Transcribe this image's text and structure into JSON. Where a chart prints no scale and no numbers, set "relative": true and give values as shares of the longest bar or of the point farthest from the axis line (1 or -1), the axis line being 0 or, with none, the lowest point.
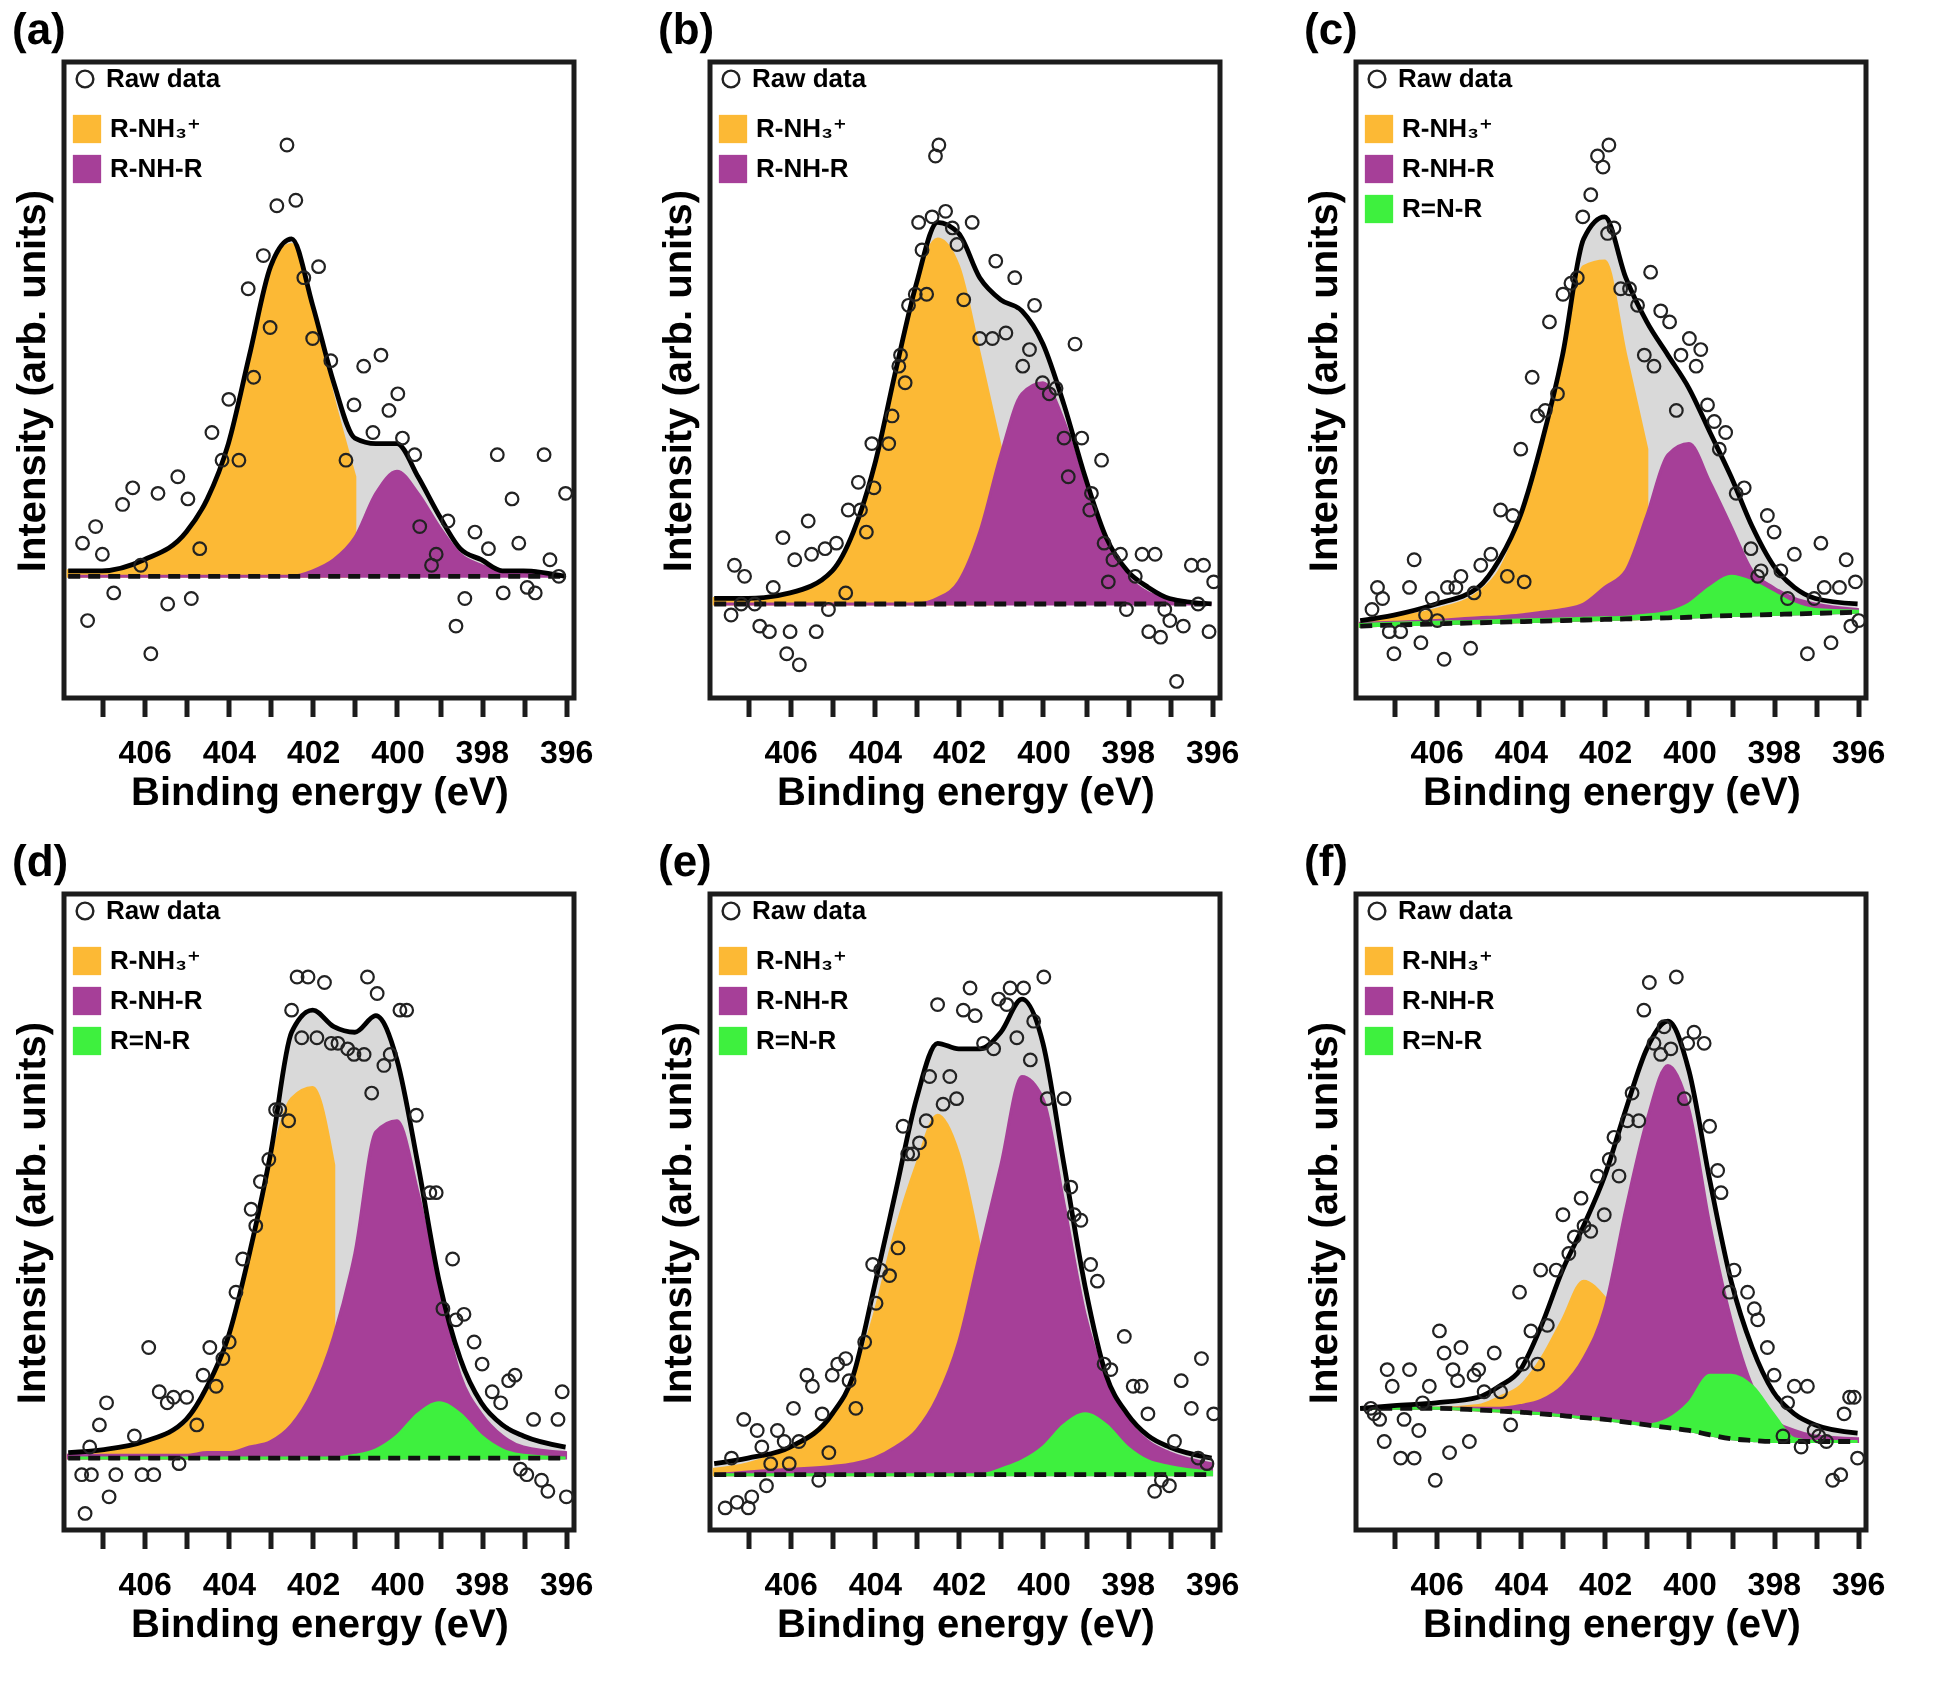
{
  "chart_data": [
    {
      "type": "area",
      "title": "(a)",
      "xlabel": "Binding energy (eV)",
      "ylabel": "Intensity (arb. units)",
      "relative": true,
      "legend": "top left",
      "xlim": [
        407.9,
        395.8
      ],
      "xticks": [
        {
          "value": 407,
          "label": null
        },
        406,
        {
          "value": 405,
          "label": null
        },
        404,
        {
          "value": 403,
          "label": null
        },
        402,
        {
          "value": 401,
          "label": null
        },
        400,
        {
          "value": 399,
          "label": null
        },
        398,
        {
          "value": 397,
          "label": null
        },
        396
      ],
      "x": [
        407.8,
        407,
        406,
        405,
        404.5,
        404,
        403.5,
        403,
        402.5,
        402,
        401.5,
        401,
        400.5,
        400,
        399.5,
        399,
        398.5,
        398,
        397.5,
        397,
        396
      ],
      "series": [
        {
          "color": "#d9d9d9",
          "values": [
            0.23,
            0.23,
            0.25,
            0.3,
            0.36,
            0.46,
            0.62,
            0.78,
            0.83,
            0.71,
            0.57,
            0.47,
            0.46,
            0.46,
            0.4,
            0.33,
            0.27,
            0.25,
            0.23,
            0.23,
            0.22
          ]
        },
        {
          "name": "R-NH₃⁺",
          "color": "#fcb935",
          "values": [
            0.23,
            0.23,
            0.25,
            0.3,
            0.36,
            0.46,
            0.62,
            0.78,
            0.82,
            0.7,
            0.54,
            0.4,
            null,
            null,
            null,
            null,
            null,
            null,
            null,
            null,
            null
          ]
        },
        {
          "name": "R-NH-R",
          "color": "#a63f98",
          "values": [
            0.22,
            0.22,
            0.22,
            0.22,
            0.22,
            0.22,
            0.22,
            0.22,
            0.22,
            0.23,
            0.25,
            0.29,
            0.37,
            0.41,
            0.37,
            0.31,
            0.26,
            0.24,
            0.23,
            0.23,
            0.22
          ]
        },
        {
          "type": "line",
          "color": "#111111",
          "line_style": "dashed",
          "values": [
            0.22,
            0.22,
            0.22,
            0.22,
            0.22,
            0.22,
            0.22,
            0.22,
            0.22,
            0.22,
            0.22,
            0.22,
            0.22,
            0.22,
            0.22,
            0.22,
            0.22,
            0.22,
            0.22,
            0.22,
            0.22
          ]
        },
        {
          "name": "Raw data",
          "type": "scatter",
          "color": "#222222",
          "marker": "circle",
          "x": [
            407.46,
            407.34,
            407.15,
            406.99,
            406.72,
            406.51,
            406.27,
            406.08,
            405.84,
            405.67,
            405.44,
            405.2,
            404.96,
            404.88,
            404.68,
            404.39,
            404.15,
            403.99,
            403.75,
            403.53,
            403.4,
            403.17,
            403.01,
            402.85,
            402.61,
            402.4,
            402.21,
            402.0,
            401.86,
            401.57,
            401.21,
            401.02,
            400.79,
            400.57,
            400.38,
            400.19,
            399.98,
            399.87,
            399.58,
            399.46,
            399.18,
            399.07,
            398.79,
            398.6,
            398.39,
            398.15,
            397.83,
            397.62,
            397.48,
            397.27,
            397.11,
            396.91,
            396.72,
            396.51,
            396.37,
            396.16,
            396.0
          ],
          "values": [
            0.28,
            0.14,
            0.31,
            0.26,
            0.19,
            0.35,
            0.38,
            0.24,
            0.08,
            0.37,
            0.17,
            0.4,
            0.36,
            0.18,
            0.27,
            0.48,
            0.43,
            0.54,
            0.43,
            0.74,
            0.58,
            0.8,
            0.67,
            0.89,
            1.0,
            0.9,
            0.76,
            0.65,
            0.78,
            0.61,
            0.43,
            0.53,
            0.6,
            0.48,
            0.62,
            0.52,
            0.55,
            0.47,
            0.44,
            0.31,
            0.24,
            0.26,
            0.32,
            0.13,
            0.18,
            0.3,
            0.27,
            0.44,
            0.19,
            0.36,
            0.28,
            0.2,
            0.19,
            0.44,
            0.25,
            0.22,
            0.37
          ]
        }
      ]
    },
    {
      "type": "area",
      "title": "(b)",
      "xlabel": "Binding energy (eV)",
      "ylabel": "Intensity (arb. units)",
      "relative": true,
      "legend": "top left",
      "xlim": [
        407.9,
        395.8
      ],
      "xticks": [
        {
          "value": 407,
          "label": null
        },
        406,
        {
          "value": 405,
          "label": null
        },
        404,
        {
          "value": 403,
          "label": null
        },
        402,
        {
          "value": 401,
          "label": null
        },
        400,
        {
          "value": 399,
          "label": null
        },
        398,
        {
          "value": 397,
          "label": null
        },
        396
      ],
      "x": [
        407.8,
        407,
        406,
        405,
        404.5,
        404,
        403.5,
        403,
        402.5,
        402,
        401.5,
        401,
        400.5,
        400,
        399.5,
        399,
        398.5,
        398,
        397.5,
        397,
        396
      ],
      "series": [
        {
          "color": "#d9d9d9",
          "values": [
            0.18,
            0.18,
            0.19,
            0.23,
            0.3,
            0.42,
            0.59,
            0.75,
            0.86,
            0.84,
            0.76,
            0.72,
            0.7,
            0.64,
            0.53,
            0.4,
            0.29,
            0.23,
            0.2,
            0.18,
            0.17
          ]
        },
        {
          "name": "R-NH₃⁺",
          "color": "#fcb935",
          "values": [
            0.18,
            0.18,
            0.19,
            0.23,
            0.3,
            0.42,
            0.59,
            0.75,
            0.83,
            0.78,
            0.62,
            0.45,
            null,
            null,
            null,
            null,
            null,
            null,
            null,
            null,
            null
          ]
        },
        {
          "name": "R-NH-R",
          "color": "#a63f98",
          "values": [
            0.17,
            0.17,
            0.17,
            0.17,
            0.17,
            0.17,
            0.17,
            0.17,
            0.18,
            0.21,
            0.3,
            0.44,
            0.55,
            0.57,
            0.5,
            0.38,
            0.28,
            0.22,
            0.19,
            0.18,
            0.17
          ]
        },
        {
          "type": "line",
          "color": "#111111",
          "line_style": "dashed",
          "values": [
            0.17,
            0.17,
            0.17,
            0.17,
            0.17,
            0.17,
            0.17,
            0.17,
            0.17,
            0.17,
            0.17,
            0.17,
            0.17,
            0.17,
            0.17,
            0.17,
            0.17,
            0.17,
            0.17,
            0.17,
            0.17
          ]
        },
        {
          "name": "Raw data",
          "type": "scatter",
          "color": "#222222",
          "marker": "circle",
          "x": [
            407.32,
            407.08,
            407.4,
            407.16,
            406.84,
            406.72,
            406.49,
            406.4,
            406.17,
            406.08,
            406.0,
            405.89,
            405.78,
            405.57,
            405.38,
            405.49,
            405.09,
            405.17,
            404.9,
            404.68,
            404.62,
            404.38,
            404.33,
            404.19,
            404.01,
            404.06,
            403.66,
            403.58,
            403.42,
            403.38,
            403.27,
            403.19,
            403.03,
            402.87,
            402.76,
            402.95,
            402.55,
            402.47,
            402.63,
            402.31,
            402.15,
            402.04,
            401.88,
            401.68,
            401.5,
            401.2,
            401.12,
            400.88,
            400.67,
            400.48,
            400.32,
            400.2,
            400.01,
            399.85,
            399.69,
            399.5,
            399.24,
            399.08,
            399.4,
            398.85,
            398.89,
            398.61,
            398.55,
            398.45,
            398.34,
            398.16,
            398.02,
            397.81,
            397.65,
            397.34,
            397.49,
            397.21,
            397.11,
            396.99,
            396.83,
            396.67,
            396.48,
            396.32,
            396.19,
            396.06,
            395.95
          ],
          "values": [
            0.24,
            0.22,
            0.15,
            0.17,
            0.17,
            0.13,
            0.12,
            0.2,
            0.29,
            0.08,
            0.12,
            0.25,
            0.06,
            0.32,
            0.12,
            0.26,
            0.16,
            0.27,
            0.28,
            0.19,
            0.34,
            0.39,
            0.34,
            0.3,
            0.38,
            0.46,
            0.46,
            0.51,
            0.6,
            0.62,
            0.57,
            0.71,
            0.73,
            0.81,
            0.73,
            0.86,
            0.98,
            1.0,
            0.87,
            0.88,
            0.85,
            0.82,
            0.72,
            0.86,
            0.65,
            0.65,
            0.79,
            0.66,
            0.76,
            0.6,
            0.63,
            0.71,
            0.57,
            0.55,
            0.56,
            0.47,
            0.64,
            0.47,
            0.4,
            0.37,
            0.34,
            0.43,
            0.28,
            0.21,
            0.25,
            0.26,
            0.16,
            0.22,
            0.26,
            0.26,
            0.12,
            0.11,
            0.16,
            0.14,
            0.03,
            0.13,
            0.24,
            0.17,
            0.24,
            0.12,
            0.21
          ]
        }
      ]
    },
    {
      "type": "area",
      "title": "(c)",
      "xlabel": "Binding energy (eV)",
      "ylabel": "Intensity (arb. units)",
      "relative": true,
      "legend": "top left",
      "xlim": [
        407.9,
        395.8
      ],
      "xticks": [
        {
          "value": 407,
          "label": null
        },
        406,
        {
          "value": 405,
          "label": null
        },
        404,
        {
          "value": 403,
          "label": null
        },
        402,
        {
          "value": 401,
          "label": null
        },
        400,
        {
          "value": 399,
          "label": null
        },
        398,
        {
          "value": 397,
          "label": null
        },
        396
      ],
      "x": [
        407.8,
        407,
        406,
        405,
        404.5,
        404,
        403.5,
        403,
        402.5,
        402,
        401.5,
        401,
        400.5,
        400,
        399.5,
        399,
        398.5,
        398,
        397.5,
        397,
        396
      ],
      "series": [
        {
          "color": "#d9d9d9",
          "values": [
            0.14,
            0.15,
            0.17,
            0.2,
            0.25,
            0.33,
            0.46,
            0.62,
            0.83,
            0.87,
            0.76,
            0.68,
            0.62,
            0.56,
            0.48,
            0.4,
            0.31,
            0.24,
            0.2,
            0.18,
            0.17
          ]
        },
        {
          "name": "R-NH₃⁺",
          "color": "#fcb935",
          "values": [
            0.135,
            0.145,
            0.16,
            0.19,
            0.23,
            0.32,
            0.45,
            0.6,
            0.78,
            0.79,
            0.62,
            0.45,
            null,
            null,
            null,
            null,
            null,
            null,
            null,
            null,
            null
          ]
        },
        {
          "name": "R-NH-R",
          "color": "#a63f98",
          "values": [
            0.135,
            0.137,
            0.14,
            0.145,
            0.147,
            0.15,
            0.155,
            0.16,
            0.17,
            0.2,
            0.23,
            0.33,
            0.44,
            0.46,
            0.39,
            0.31,
            0.23,
            0.2,
            0.18,
            0.17,
            0.16
          ]
        },
        {
          "name": "R=N-R",
          "color": "#3ef03e",
          "values": [
            0.133,
            0.135,
            0.137,
            0.139,
            0.14,
            0.141,
            0.142,
            0.143,
            0.144,
            0.145,
            0.146,
            0.15,
            0.155,
            0.17,
            0.2,
            0.22,
            0.21,
            0.19,
            0.17,
            0.16,
            0.157
          ]
        },
        {
          "type": "line",
          "color": "#111111",
          "line_style": "dashed",
          "values": [
            0.13,
            0.132,
            0.134,
            0.136,
            0.137,
            0.138,
            0.139,
            0.14,
            0.141,
            0.142,
            0.143,
            0.144,
            0.145,
            0.146,
            0.148,
            0.149,
            0.15,
            0.151,
            0.152,
            0.153,
            0.155
          ]
        },
        {
          "name": "Raw data",
          "type": "scatter",
          "color": "#222222",
          "marker": "circle",
          "x": [
            407.52,
            407.39,
            407.27,
            407.11,
            407.0,
            406.84,
            406.63,
            406.52,
            406.36,
            406.25,
            406.09,
            405.97,
            405.81,
            405.73,
            405.53,
            405.41,
            405.18,
            405.1,
            404.94,
            404.7,
            404.47,
            404.31,
            404.18,
            403.99,
            403.91,
            403.72,
            403.59,
            403.41,
            403.31,
            403.12,
            402.99,
            402.8,
            402.65,
            402.52,
            402.33,
            402.17,
            401.9,
            402.04,
            401.93,
            401.78,
            401.62,
            401.41,
            401.22,
            401.06,
            400.91,
            400.83,
            400.67,
            400.46,
            400.3,
            400.19,
            399.99,
            399.83,
            399.72,
            399.56,
            399.4,
            399.28,
            399.13,
            398.88,
            398.69,
            398.53,
            398.37,
            398.29,
            398.14,
            397.98,
            397.82,
            397.66,
            397.5,
            397.19,
            397.03,
            396.87,
            396.79,
            396.63,
            396.43,
            396.27,
            396.16,
            396.05,
            395.97
          ],
          "values": [
            0.16,
            0.2,
            0.18,
            0.12,
            0.08,
            0.12,
            0.2,
            0.25,
            0.1,
            0.15,
            0.18,
            0.14,
            0.07,
            0.2,
            0.2,
            0.22,
            0.09,
            0.19,
            0.24,
            0.26,
            0.34,
            0.22,
            0.33,
            0.45,
            0.21,
            0.58,
            0.51,
            0.52,
            0.68,
            0.55,
            0.73,
            0.75,
            0.76,
            0.87,
            0.91,
            0.98,
            1.0,
            0.96,
            0.84,
            0.85,
            0.74,
            0.74,
            0.71,
            0.62,
            0.77,
            0.6,
            0.7,
            0.68,
            0.52,
            0.62,
            0.65,
            0.6,
            0.63,
            0.53,
            0.5,
            0.45,
            0.48,
            0.37,
            0.38,
            0.27,
            0.22,
            0.23,
            0.33,
            0.3,
            0.23,
            0.18,
            0.26,
            0.08,
            0.18,
            0.28,
            0.2,
            0.1,
            0.2,
            0.25,
            0.13,
            0.21,
            0.14
          ]
        }
      ]
    },
    {
      "type": "area",
      "title": "(d)",
      "xlabel": "Binding energy (eV)",
      "ylabel": "Intensity (arb. units)",
      "relative": true,
      "legend": "top left",
      "xlim": [
        407.9,
        395.8
      ],
      "xticks": [
        {
          "value": 407,
          "label": null
        },
        406,
        {
          "value": 405,
          "label": null
        },
        404,
        {
          "value": 403,
          "label": null
        },
        402,
        {
          "value": 401,
          "label": null
        },
        400,
        {
          "value": 399,
          "label": null
        },
        398,
        {
          "value": 397,
          "label": null
        },
        396
      ],
      "x": [
        407.8,
        407,
        406,
        405,
        404.5,
        404,
        403.5,
        403,
        402.5,
        402,
        401.5,
        401,
        400.5,
        400,
        399.5,
        399,
        398.5,
        398,
        397.5,
        397,
        396
      ],
      "series": [
        {
          "color": "#d9d9d9",
          "values": [
            0.14,
            0.145,
            0.16,
            0.2,
            0.26,
            0.35,
            0.5,
            0.68,
            0.9,
            0.94,
            0.91,
            0.9,
            0.93,
            0.85,
            0.66,
            0.45,
            0.31,
            0.23,
            0.19,
            0.17,
            0.15
          ]
        },
        {
          "name": "R-NH₃⁺",
          "color": "#fcb935",
          "values": [
            0.135,
            0.14,
            0.155,
            0.19,
            0.25,
            0.34,
            0.48,
            0.66,
            0.78,
            0.8,
            0.66,
            null,
            null,
            null,
            null,
            null,
            null,
            null,
            null,
            null,
            null
          ]
        },
        {
          "name": "R-NH-R",
          "color": "#a63f98",
          "values": [
            0.135,
            0.135,
            0.135,
            0.135,
            0.14,
            0.14,
            0.15,
            0.16,
            0.19,
            0.25,
            0.35,
            0.5,
            0.72,
            0.74,
            0.61,
            0.43,
            0.28,
            0.21,
            0.17,
            0.15,
            0.14
          ]
        },
        {
          "name": "R=N-R",
          "color": "#3ef03e",
          "values": [
            0.13,
            0.13,
            0.13,
            0.13,
            0.13,
            0.13,
            0.13,
            0.13,
            0.13,
            0.13,
            0.13,
            0.135,
            0.145,
            0.17,
            0.21,
            0.23,
            0.21,
            0.17,
            0.145,
            0.135,
            0.13
          ]
        },
        {
          "type": "line",
          "color": "#111111",
          "line_style": "dashed",
          "values": [
            0.13,
            0.13,
            0.13,
            0.13,
            0.13,
            0.13,
            0.13,
            0.13,
            0.13,
            0.13,
            0.13,
            0.13,
            0.13,
            0.13,
            0.13,
            0.13,
            0.13,
            0.13,
            0.13,
            0.13,
            0.13
          ]
        },
        {
          "name": "Raw data",
          "type": "scatter",
          "color": "#222222",
          "marker": "circle",
          "x": [
            407.4,
            407.48,
            407.25,
            407.29,
            407.06,
            406.89,
            406.83,
            406.67,
            406.23,
            406.05,
            405.89,
            405.77,
            405.64,
            405.45,
            405.3,
            405.17,
            404.99,
            404.75,
            404.6,
            404.44,
            404.29,
            404.13,
            403.98,
            403.82,
            403.66,
            403.46,
            403.35,
            403.24,
            403.04,
            402.88,
            402.78,
            402.57,
            402.5,
            402.37,
            402.26,
            402.11,
            401.9,
            401.72,
            401.56,
            401.4,
            401.17,
            401.02,
            400.78,
            400.7,
            400.6,
            400.47,
            400.31,
            400.16,
            399.93,
            399.77,
            399.54,
            399.22,
            399.07,
            398.91,
            398.68,
            398.6,
            398.41,
            398.17,
            397.98,
            397.74,
            397.54,
            397.35,
            397.2,
            397.07,
            396.92,
            396.76,
            396.57,
            396.42,
            396.18,
            396.08,
            395.98
          ],
          "values": [
            0.03,
            0.1,
            0.1,
            0.15,
            0.19,
            0.23,
            0.06,
            0.1,
            0.17,
            0.1,
            0.33,
            0.1,
            0.25,
            0.23,
            0.24,
            0.12,
            0.24,
            0.19,
            0.28,
            0.33,
            0.26,
            0.31,
            0.34,
            0.43,
            0.49,
            0.58,
            0.55,
            0.63,
            0.67,
            0.76,
            0.76,
            0.74,
            0.94,
            1.0,
            0.89,
            1.0,
            0.89,
            0.99,
            0.88,
            0.88,
            0.87,
            0.86,
            0.86,
            1.0,
            0.79,
            0.97,
            0.84,
            0.86,
            0.94,
            0.94,
            0.75,
            0.61,
            0.61,
            0.4,
            0.49,
            0.38,
            0.39,
            0.34,
            0.3,
            0.25,
            0.23,
            0.27,
            0.28,
            0.11,
            0.1,
            0.2,
            0.09,
            0.07,
            0.2,
            0.25,
            0.06
          ]
        }
      ]
    },
    {
      "type": "area",
      "title": "(e)",
      "xlabel": "Binding energy (eV)",
      "ylabel": "Intensity (arb. units)",
      "relative": true,
      "legend": "top left",
      "xlim": [
        407.9,
        395.8
      ],
      "xticks": [
        {
          "value": 407,
          "label": null
        },
        406,
        {
          "value": 405,
          "label": null
        },
        404,
        {
          "value": 403,
          "label": null
        },
        402,
        {
          "value": 401,
          "label": null
        },
        400,
        {
          "value": 399,
          "label": null
        },
        398,
        {
          "value": 397,
          "label": null
        },
        396
      ],
      "x": [
        407.8,
        407,
        406,
        405,
        404.5,
        404,
        403.5,
        403,
        402.5,
        402,
        401.5,
        401,
        400.5,
        400,
        399.5,
        399,
        398.5,
        398,
        397.5,
        397,
        396
      ],
      "series": [
        {
          "color": "#d9d9d9",
          "values": [
            0.12,
            0.13,
            0.15,
            0.21,
            0.28,
            0.44,
            0.61,
            0.78,
            0.88,
            0.87,
            0.87,
            0.9,
            0.96,
            0.88,
            0.66,
            0.44,
            0.28,
            0.21,
            0.17,
            0.15,
            0.13
          ]
        },
        {
          "name": "R-NH₃⁺",
          "color": "#fcb935",
          "values": [
            0.11,
            0.12,
            0.15,
            0.21,
            0.27,
            0.39,
            0.54,
            0.66,
            0.75,
            0.68,
            0.51,
            null,
            null,
            null,
            null,
            null,
            null,
            null,
            null,
            null,
            null
          ]
        },
        {
          "name": "R-NH-R",
          "color": "#a63f98",
          "values": [
            0.1,
            0.105,
            0.11,
            0.115,
            0.12,
            0.13,
            0.15,
            0.18,
            0.24,
            0.34,
            0.5,
            0.66,
            0.82,
            0.78,
            0.59,
            0.39,
            0.27,
            0.2,
            0.16,
            0.14,
            0.12
          ]
        },
        {
          "name": "R=N-R",
          "color": "#3ef03e",
          "values": [
            0.1,
            0.1,
            0.1,
            0.1,
            0.1,
            0.1,
            0.1,
            0.1,
            0.1,
            0.1,
            0.1,
            0.11,
            0.125,
            0.15,
            0.19,
            0.21,
            0.19,
            0.15,
            0.125,
            0.115,
            0.105
          ]
        },
        {
          "type": "line",
          "color": "#111111",
          "line_style": "dashed",
          "values": [
            0.1,
            0.1,
            0.1,
            0.1,
            0.1,
            0.1,
            0.1,
            0.1,
            0.1,
            0.1,
            0.1,
            0.1,
            0.1,
            0.1,
            0.1,
            0.1,
            0.1,
            0.1,
            0.1,
            0.1,
            0.1
          ]
        },
        {
          "name": "Raw data",
          "type": "scatter",
          "color": "#222222",
          "marker": "circle",
          "x": [
            407.54,
            407.39,
            407.26,
            407.1,
            406.99,
            406.91,
            406.78,
            406.67,
            406.56,
            406.46,
            406.3,
            406.14,
            406.02,
            405.92,
            405.79,
            405.6,
            405.47,
            405.32,
            405.24,
            405.08,
            405.0,
            404.87,
            404.68,
            404.6,
            404.44,
            404.23,
            404.04,
            403.96,
            403.85,
            403.64,
            403.44,
            403.32,
            403.21,
            403.09,
            402.93,
            402.77,
            402.69,
            402.5,
            402.37,
            402.21,
            402.05,
            401.89,
            401.73,
            401.61,
            401.41,
            401.17,
            401.05,
            400.86,
            400.78,
            400.62,
            400.46,
            400.3,
            400.22,
            399.98,
            399.9,
            399.5,
            399.34,
            399.26,
            399.1,
            398.87,
            398.71,
            398.55,
            398.39,
            398.07,
            397.86,
            397.67,
            397.51,
            397.35,
            397.19,
            397.0,
            396.88,
            396.72,
            396.48,
            396.32,
            396.24,
            396.11,
            395.95
          ],
          "values": [
            0.04,
            0.13,
            0.05,
            0.2,
            0.04,
            0.06,
            0.18,
            0.15,
            0.08,
            0.12,
            0.18,
            0.16,
            0.12,
            0.22,
            0.16,
            0.28,
            0.26,
            0.09,
            0.21,
            0.14,
            0.28,
            0.3,
            0.31,
            0.27,
            0.22,
            0.34,
            0.48,
            0.41,
            0.47,
            0.46,
            0.51,
            0.73,
            0.68,
            0.68,
            0.7,
            0.74,
            0.82,
            0.95,
            0.77,
            0.82,
            0.78,
            0.94,
            0.98,
            0.93,
            0.88,
            0.87,
            0.96,
            0.95,
            0.98,
            0.89,
            0.98,
            0.85,
            0.92,
            1.0,
            0.78,
            0.78,
            0.62,
            0.57,
            0.56,
            0.48,
            0.45,
            0.3,
            0.29,
            0.35,
            0.26,
            0.26,
            0.21,
            0.07,
            0.09,
            0.08,
            0.16,
            0.27,
            0.22,
            0.13,
            0.31,
            0.12,
            0.21
          ]
        }
      ]
    },
    {
      "type": "area",
      "title": "(f)",
      "xlabel": "Binding energy (eV)",
      "ylabel": "Intensity (arb. units)",
      "relative": true,
      "legend": "top left",
      "xlim": [
        407.9,
        395.8
      ],
      "xticks": [
        {
          "value": 407,
          "label": null
        },
        406,
        {
          "value": 405,
          "label": null
        },
        404,
        {
          "value": 403,
          "label": null
        },
        402,
        {
          "value": 401,
          "label": null
        },
        400,
        {
          "value": 399,
          "label": null
        },
        398,
        {
          "value": 397,
          "label": null
        },
        396
      ],
      "x": [
        407.8,
        407,
        406,
        405,
        404.5,
        404,
        403.5,
        403,
        402.5,
        402,
        401.5,
        401,
        400.5,
        400,
        399.5,
        399,
        398.5,
        398,
        397.5,
        397,
        396
      ],
      "series": [
        {
          "color": "#d9d9d9",
          "values": [
            0.22,
            0.225,
            0.23,
            0.24,
            0.26,
            0.29,
            0.37,
            0.47,
            0.55,
            0.64,
            0.76,
            0.87,
            0.92,
            0.83,
            0.63,
            0.45,
            0.33,
            0.25,
            0.21,
            0.19,
            0.175
          ]
        },
        {
          "name": "R-NH₃⁺",
          "color": "#fcb935",
          "values": [
            0.22,
            0.22,
            0.22,
            0.225,
            0.24,
            0.26,
            0.31,
            0.38,
            0.45,
            0.42,
            null,
            null,
            null,
            null,
            null,
            null,
            null,
            null,
            null,
            null,
            null
          ]
        },
        {
          "name": "R-NH-R",
          "color": "#a63f98",
          "values": [
            0.22,
            0.22,
            0.22,
            0.22,
            0.22,
            0.225,
            0.235,
            0.26,
            0.31,
            0.4,
            0.58,
            0.74,
            0.84,
            0.76,
            0.55,
            0.38,
            0.26,
            0.2,
            0.18,
            0.17,
            0.165
          ]
        },
        {
          "name": "R=N-R",
          "color": "#3ef03e",
          "values": [
            0.22,
            0.22,
            0.22,
            0.217,
            0.215,
            0.213,
            0.21,
            0.207,
            0.203,
            0.2,
            0.195,
            0.19,
            0.2,
            0.23,
            0.28,
            0.28,
            0.26,
            0.21,
            0.165,
            0.16,
            0.16
          ]
        },
        {
          "type": "line",
          "color": "#111111",
          "line_style": "dashed",
          "values": [
            0.22,
            0.22,
            0.22,
            0.217,
            0.215,
            0.213,
            0.21,
            0.207,
            0.203,
            0.2,
            0.195,
            0.19,
            0.185,
            0.18,
            0.172,
            0.165,
            0.162,
            0.16,
            0.16,
            0.16,
            0.16
          ]
        },
        {
          "name": "Raw data",
          "type": "scatter",
          "color": "#222222",
          "marker": "circle",
          "x": [
            407.55,
            407.47,
            407.34,
            407.23,
            407.16,
            407.04,
            406.84,
            406.76,
            406.63,
            406.52,
            406.41,
            406.32,
            406.16,
            406.02,
            405.92,
            405.81,
            405.68,
            405.6,
            405.49,
            405.41,
            405.21,
            405.1,
            404.99,
            404.86,
            404.62,
            404.47,
            404.23,
            404.02,
            403.94,
            403.75,
            403.59,
            403.52,
            403.36,
            403.15,
            402.99,
            402.85,
            402.72,
            402.56,
            402.49,
            402.33,
            402.17,
            402.01,
            401.89,
            401.78,
            401.66,
            401.46,
            401.35,
            401.19,
            401.07,
            400.94,
            400.83,
            400.67,
            400.59,
            400.43,
            400.3,
            400.11,
            400.03,
            399.88,
            399.64,
            399.51,
            399.32,
            399.24,
            399.04,
            398.93,
            398.61,
            398.45,
            398.37,
            398.14,
            397.98,
            397.77,
            397.66,
            397.5,
            397.34,
            397.19,
            397.03,
            396.92,
            396.74,
            396.59,
            396.4,
            396.32,
            396.19,
            396.08,
            396.0
          ],
          "values": [
            0.22,
            0.21,
            0.2,
            0.16,
            0.29,
            0.26,
            0.13,
            0.2,
            0.29,
            0.13,
            0.18,
            0.23,
            0.26,
            0.09,
            0.36,
            0.32,
            0.14,
            0.29,
            0.27,
            0.33,
            0.16,
            0.28,
            0.29,
            0.25,
            0.32,
            0.25,
            0.19,
            0.43,
            0.3,
            0.36,
            0.3,
            0.47,
            0.37,
            0.47,
            0.57,
            0.5,
            0.53,
            0.6,
            0.55,
            0.54,
            0.64,
            0.57,
            0.67,
            0.71,
            0.64,
            0.74,
            0.79,
            0.74,
            0.94,
            0.99,
            0.88,
            0.86,
            0.91,
            0.87,
            1.0,
            0.78,
            0.88,
            0.9,
            0.88,
            0.73,
            0.65,
            0.61,
            0.43,
            0.47,
            0.43,
            0.4,
            0.38,
            0.33,
            0.28,
            0.17,
            0.23,
            0.26,
            0.15,
            0.26,
            0.18,
            0.17,
            0.16,
            0.09,
            0.1,
            0.21,
            0.24,
            0.24,
            0.13
          ]
        }
      ]
    }
  ]
}
